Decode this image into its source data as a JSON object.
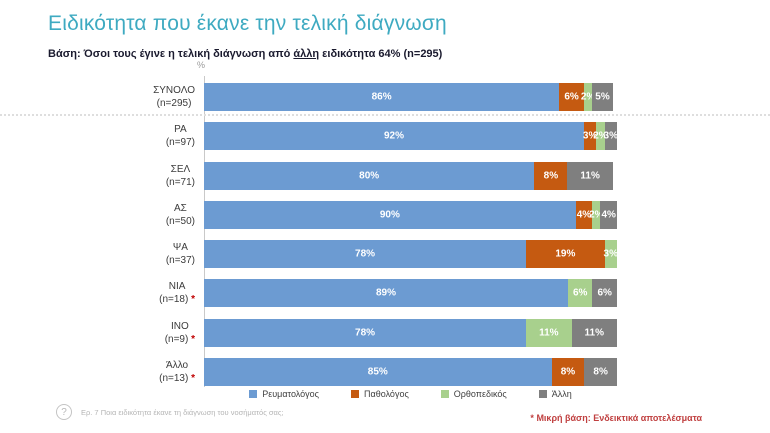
{
  "title": "Ειδικότητα που έκανε την τελική διάγνωση",
  "title_color": "#3EAAC1",
  "subtitle": {
    "prefix": "Βάση: Όσοι τους έγινε η τελική διάγνωση από ",
    "underlined": "άλλη",
    "middle": " ειδικότητα ",
    "percent": "64%",
    "suffix": " (n=295)"
  },
  "axis_unit_label": "%",
  "chart_data": {
    "type": "bar",
    "orientation": "horizontal",
    "stacked": true,
    "xlim": [
      0,
      100
    ],
    "value_suffix": "%",
    "legend_position": "bottom",
    "series": [
      {
        "name": "Ρευματολόγος",
        "color": "#6C9BD2"
      },
      {
        "name": "Παθολόγος",
        "color": "#C55A11"
      },
      {
        "name": "Ορθοπεδικός",
        "color": "#A8D08D"
      },
      {
        "name": "Άλλη",
        "color": "#7F7F7F"
      }
    ],
    "rows": [
      {
        "category": "ΣΥΝΟΛΟ",
        "n": "(n=295)",
        "small_base": false,
        "values": [
          86,
          6,
          2,
          5
        ]
      },
      {
        "category": "ΡΑ",
        "n": "(n=97)",
        "small_base": false,
        "values": [
          92,
          3,
          2,
          3
        ]
      },
      {
        "category": "ΣΕΛ",
        "n": "(n=71)",
        "small_base": false,
        "values": [
          80,
          8,
          0,
          11
        ]
      },
      {
        "category": "ΑΣ",
        "n": "(n=50)",
        "small_base": false,
        "values": [
          90,
          4,
          2,
          4
        ]
      },
      {
        "category": "ΨΑ",
        "n": "(n=37)",
        "small_base": false,
        "values": [
          78,
          19,
          3,
          0
        ]
      },
      {
        "category": "ΝΙΑ",
        "n": "(n=18)",
        "small_base": true,
        "values": [
          89,
          0,
          6,
          6
        ]
      },
      {
        "category": "ΙΝΟ",
        "n": "(n=9)",
        "small_base": true,
        "values": [
          78,
          0,
          11,
          11
        ]
      },
      {
        "category": "Άλλο",
        "n": "(n=13)",
        "small_base": true,
        "values": [
          85,
          8,
          0,
          8
        ]
      }
    ],
    "separator_after_first_row": true
  },
  "footer": {
    "question_icon": "?",
    "question": "Ερ. 7 Ποια ειδικότητα έκανε τη διάγνωση του νοσήματός σας;",
    "note_asterisk": "*",
    "note": " Μικρή βάση: Ενδεικτικά αποτελέσματα",
    "note_color": "#C04040"
  }
}
